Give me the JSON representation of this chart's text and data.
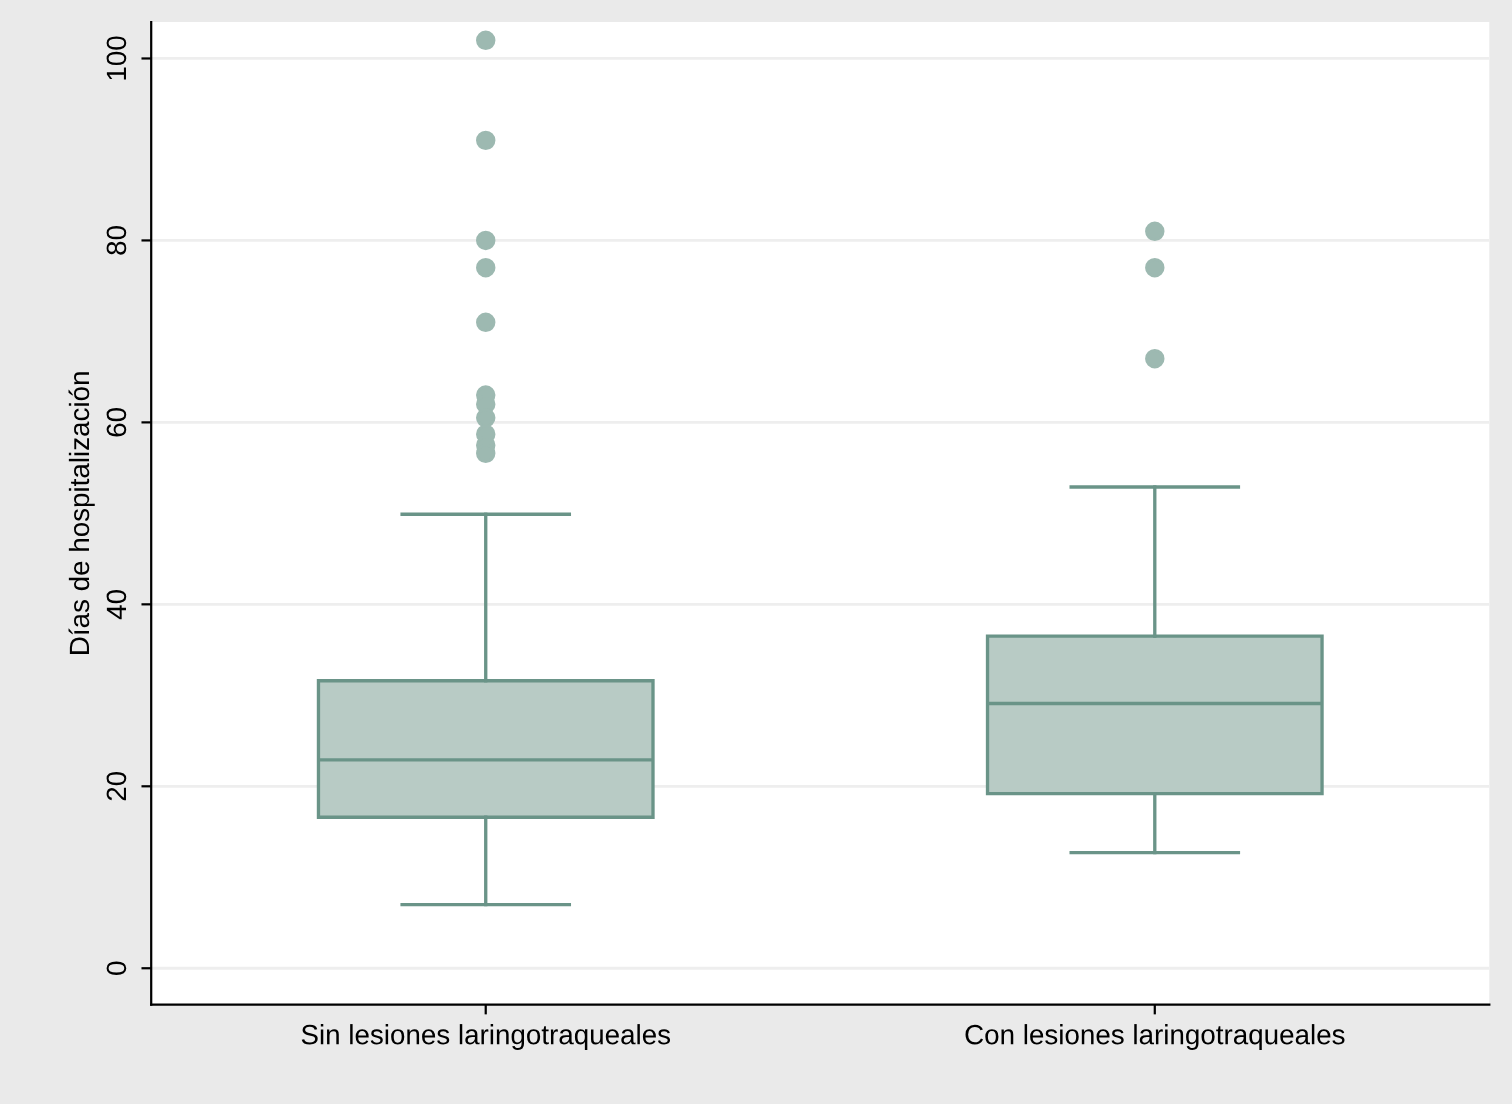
{
  "chart_data": {
    "type": "box",
    "ylabel": "Días de hospitalización",
    "categories": [
      "Sin lesiones laringotraqueales",
      "Con lesiones laringotraqueales"
    ],
    "boxes": [
      {
        "low": 7,
        "q1": 16.6,
        "median": 22.9,
        "q3": 31.6,
        "high": 49.9,
        "outliers": [
          102,
          91,
          80,
          77,
          71,
          63,
          62,
          60.5,
          58.7,
          57.5,
          56.6
        ]
      },
      {
        "low": 12.7,
        "q1": 19.2,
        "median": 29.1,
        "q3": 36.5,
        "high": 52.9,
        "outliers": [
          81,
          77,
          67
        ]
      }
    ],
    "color": "#b8cbc5",
    "ylim": [
      -4,
      104
    ],
    "yticks": [
      0,
      20,
      40,
      60,
      80,
      100
    ],
    "grid": "y"
  }
}
